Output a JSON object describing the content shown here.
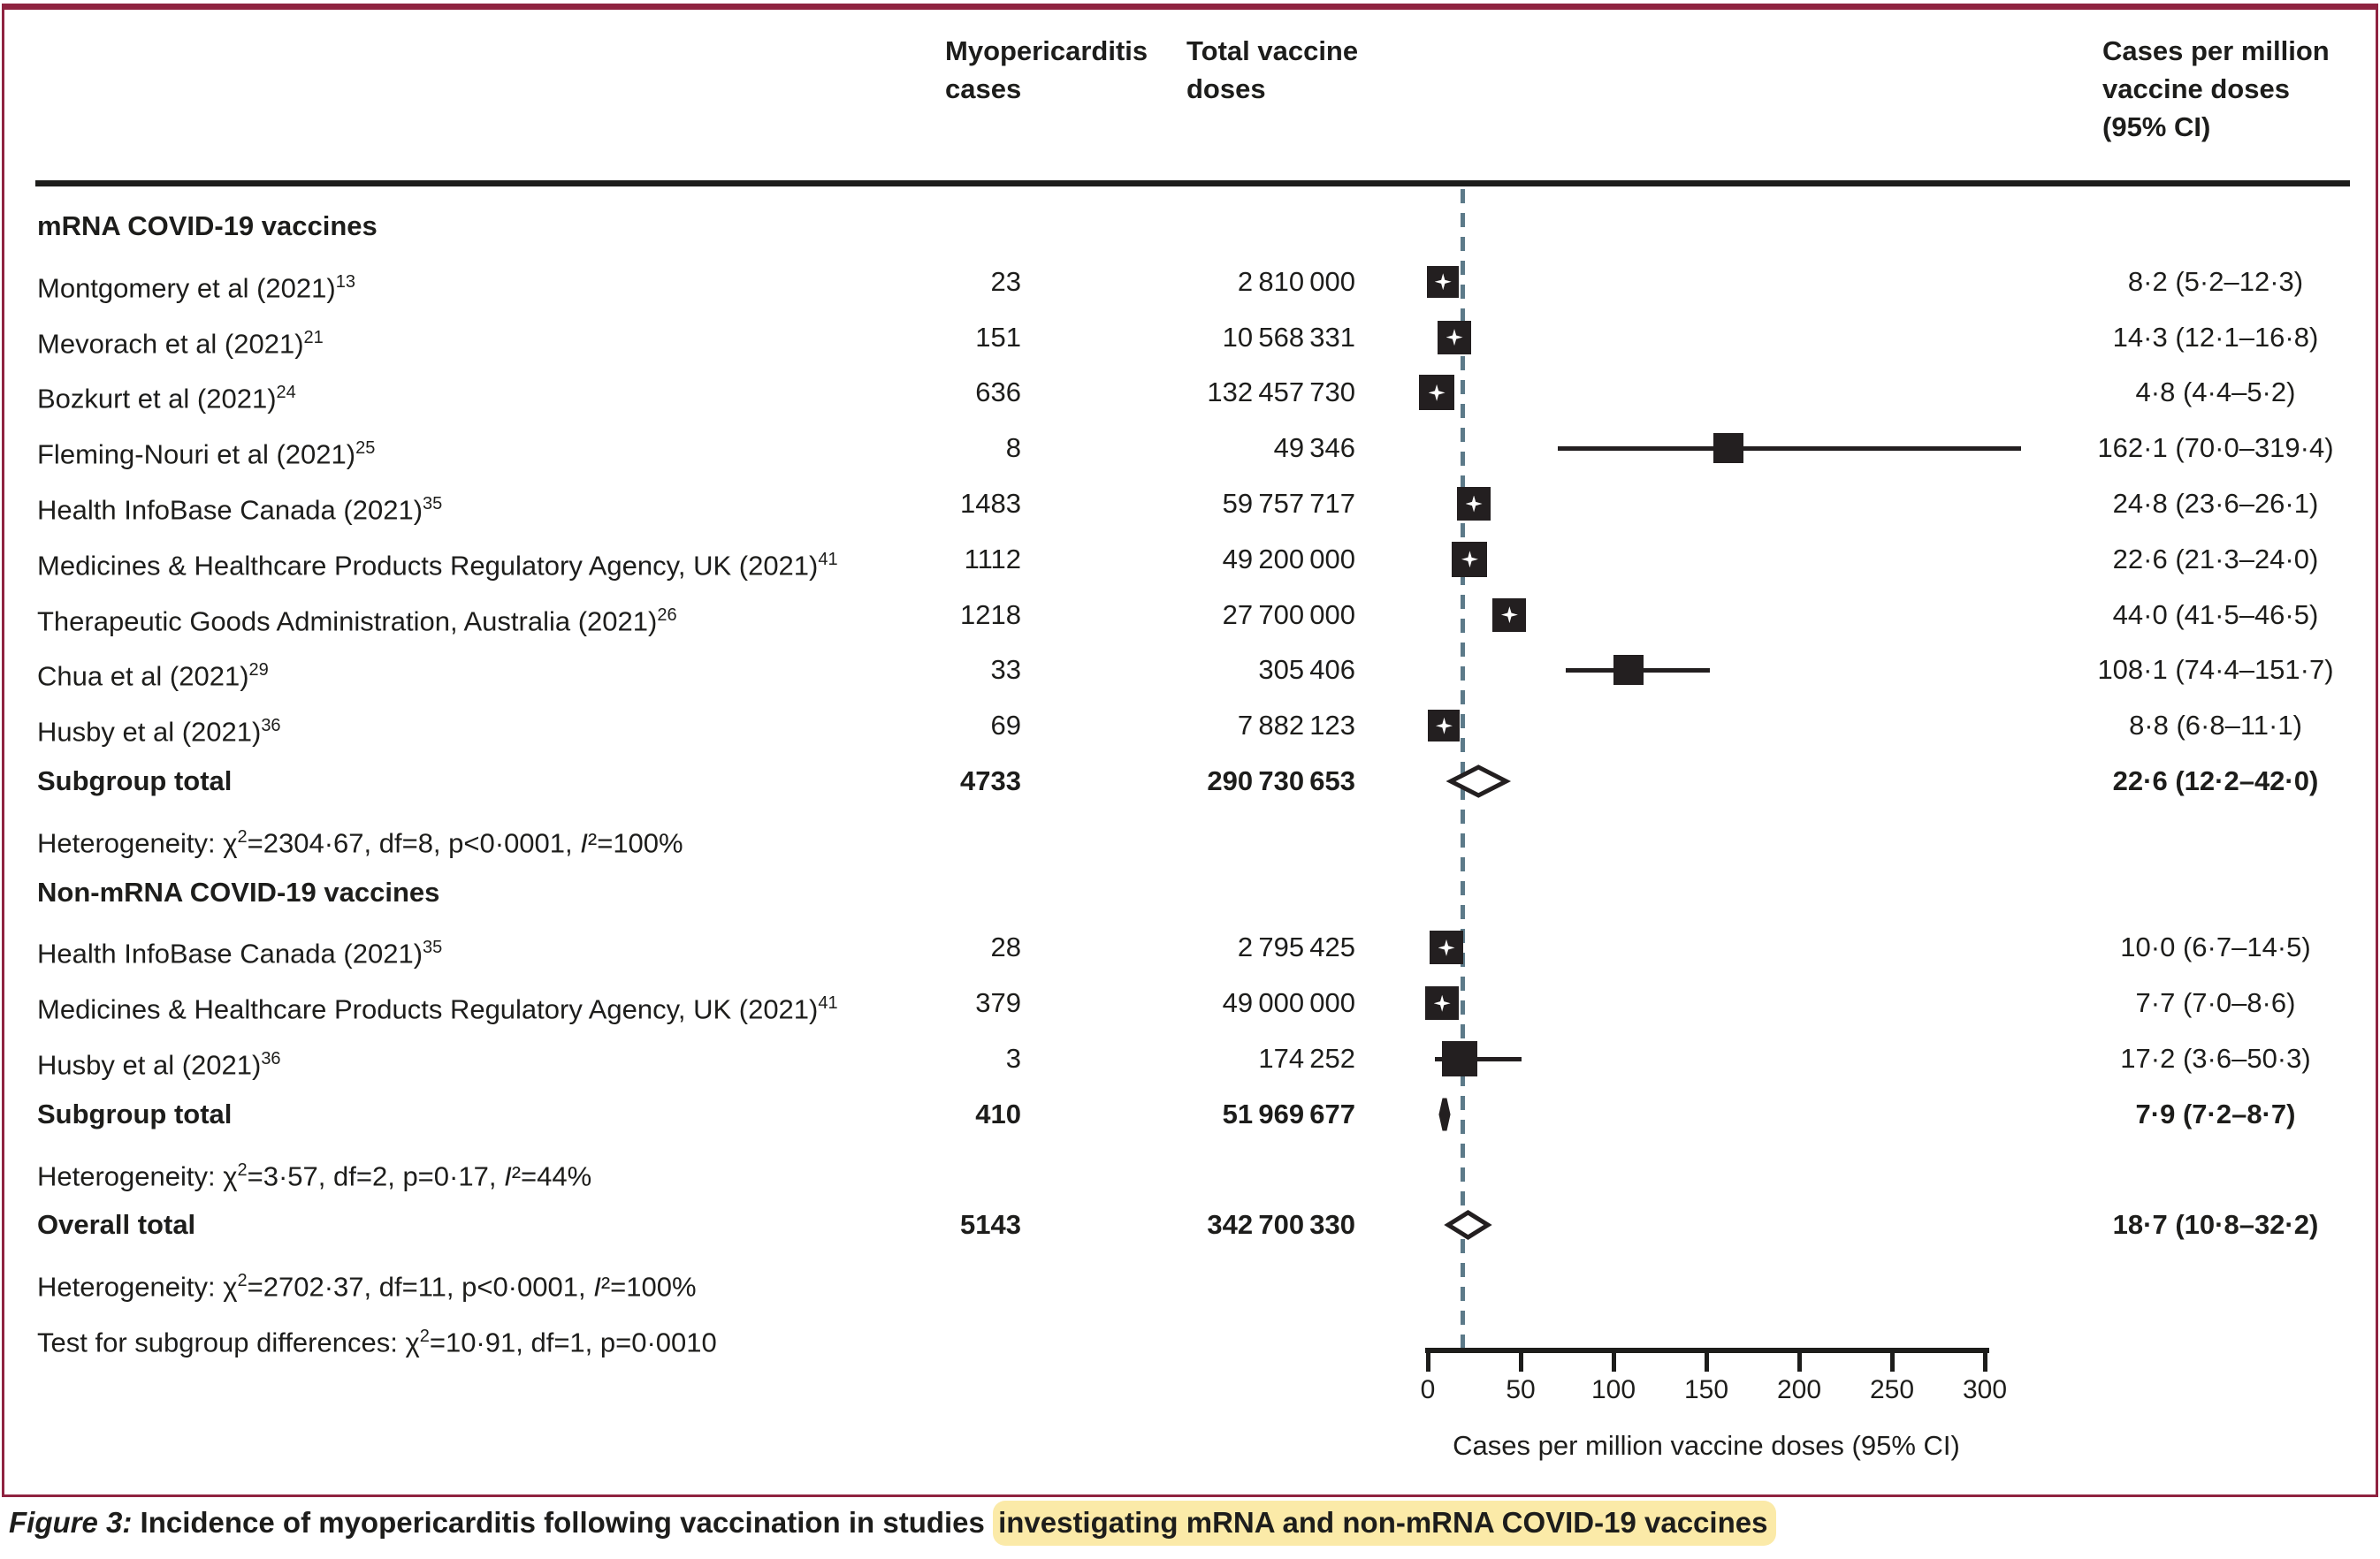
{
  "header": {
    "cases_col": "Myopericarditis\ncases",
    "doses_col": "Total vaccine\ndoses",
    "rate_col": "Cases per million\nvaccine doses\n(95% CI)"
  },
  "axis": {
    "min": 0,
    "max": 300,
    "ticks": [
      "0",
      "50",
      "100",
      "150",
      "200",
      "250",
      "300"
    ],
    "tick_values": [
      0,
      50,
      100,
      150,
      200,
      250,
      300
    ],
    "label": "Cases per million vaccine doses (95% CI)"
  },
  "rows": [
    {
      "type": "group",
      "label": "mRNA COVID-19 vaccines"
    },
    {
      "type": "study",
      "label": "Montgomery et al (2021)",
      "ref": "13",
      "cases": "23",
      "doses": "2 810 000",
      "ci_text": "8·2 (5·2–12·3)",
      "value": 8.2,
      "lo": 5.2,
      "hi": 12.3,
      "size": 36,
      "star": true
    },
    {
      "type": "study",
      "label": "Mevorach et al (2021)",
      "ref": "21",
      "cases": "151",
      "doses": "10 568 331",
      "ci_text": "14·3 (12·1–16·8)",
      "value": 14.3,
      "lo": 12.1,
      "hi": 16.8,
      "size": 38,
      "star": true
    },
    {
      "type": "study",
      "label": "Bozkurt et al (2021)",
      "ref": "24",
      "cases": "636",
      "doses": "132 457 730",
      "ci_text": "4·8 (4·4–5·2)",
      "value": 4.8,
      "lo": 4.4,
      "hi": 5.2,
      "size": 40,
      "star": true
    },
    {
      "type": "study",
      "label": "Fleming-Nouri et al (2021)",
      "ref": "25",
      "cases": "8",
      "doses": "49 346",
      "ci_text": "162·1 (70·0–319·4)",
      "value": 162.1,
      "lo": 70.0,
      "hi": 319.4,
      "size": 34,
      "star": false
    },
    {
      "type": "study",
      "label": "Health InfoBase Canada (2021)",
      "ref": "35",
      "cases": "1483",
      "doses": "59 757 717",
      "ci_text": "24·8 (23·6–26·1)",
      "value": 24.8,
      "lo": 23.6,
      "hi": 26.1,
      "size": 38,
      "star": true
    },
    {
      "type": "study",
      "label": "Medicines & Healthcare Products Regulatory Agency, UK (2021)",
      "ref": "41",
      "cases": "1112",
      "doses": "49 200 000",
      "ci_text": "22·6 (21·3–24·0)",
      "value": 22.6,
      "lo": 21.3,
      "hi": 24.0,
      "size": 40,
      "star": true
    },
    {
      "type": "study",
      "label": "Therapeutic Goods Administration, Australia (2021)",
      "ref": "26",
      "cases": "1218",
      "doses": "27 700 000",
      "ci_text": "44·0 (41·5–46·5)",
      "value": 44.0,
      "lo": 41.5,
      "hi": 46.5,
      "size": 38,
      "star": true
    },
    {
      "type": "study",
      "label": "Chua et al (2021)",
      "ref": "29",
      "cases": "33",
      "doses": "305 406",
      "ci_text": "108·1 (74·4–151·7)",
      "value": 108.1,
      "lo": 74.4,
      "hi": 151.7,
      "size": 34,
      "star": false
    },
    {
      "type": "study",
      "label": "Husby et al (2021)",
      "ref": "36",
      "cases": "69",
      "doses": "7 882 123",
      "ci_text": "8·8 (6·8–11·1)",
      "value": 8.8,
      "lo": 6.8,
      "hi": 11.1,
      "size": 36,
      "star": true
    },
    {
      "type": "subtotal",
      "label": "Subgroup total",
      "cases": "4733",
      "doses": "290 730 653",
      "ci_text": "22·6 (12·2–42·0)",
      "value": 22.6,
      "lo": 12.2,
      "hi": 42.0,
      "diamond": "open"
    },
    {
      "type": "het",
      "label": "Heterogeneity: χ²=2304·67, df=8, p<0·0001, I²=100%"
    },
    {
      "type": "group",
      "label": "Non-mRNA COVID-19 vaccines"
    },
    {
      "type": "study",
      "label": "Health InfoBase Canada (2021)",
      "ref": "35",
      "cases": "28",
      "doses": "2 795 425",
      "ci_text": "10·0 (6·7–14·5)",
      "value": 10.0,
      "lo": 6.7,
      "hi": 14.5,
      "size": 38,
      "star": true
    },
    {
      "type": "study",
      "label": "Medicines & Healthcare Products Regulatory Agency, UK (2021)",
      "ref": "41",
      "cases": "379",
      "doses": "49 000 000",
      "ci_text": "7·7 (7·0–8·6)",
      "value": 7.7,
      "lo": 7.0,
      "hi": 8.6,
      "size": 38,
      "star": true
    },
    {
      "type": "study",
      "label": "Husby et al (2021)",
      "ref": "36",
      "cases": "3",
      "doses": "174 252",
      "ci_text": "17·2 (3·6–50·3)",
      "value": 17.2,
      "lo": 3.6,
      "hi": 50.3,
      "size": 40,
      "star": false
    },
    {
      "type": "subtotal",
      "label": "Subgroup total",
      "cases": "410",
      "doses": "51 969 677",
      "ci_text": "7·9 (7·2–8·7)",
      "value": 7.9,
      "lo": 7.2,
      "hi": 8.7,
      "diamond": "filled"
    },
    {
      "type": "het",
      "label": "Heterogeneity: χ²=3·57, df=2, p=0·17, I²=44%"
    },
    {
      "type": "overall",
      "label": "Overall total",
      "cases": "5143",
      "doses": "342 700 330",
      "ci_text": "18·7 (10·8–32·2)",
      "value": 18.7,
      "lo": 10.8,
      "hi": 32.2,
      "diamond": "open"
    },
    {
      "type": "het",
      "label": "Heterogeneity: χ²=2702·37, df=11, p<0·0001, I²=100%"
    },
    {
      "type": "het",
      "label": "Test for subgroup differences: χ²=10·91, df=1, p=0·0010"
    }
  ],
  "caption": {
    "fig_label": "Figure 3:",
    "text": " Incidence of myopericarditis following vaccination in studies ",
    "highlight": "investigating mRNA and non-mRNA COVID-19 vaccines"
  },
  "colors": {
    "frame": "#8f2340",
    "marker": "#231f20",
    "dashed_line": "#5c7a89",
    "highlight": "#fbeaa8"
  },
  "chart_data": {
    "type": "forest",
    "title": "Incidence of myopericarditis following vaccination",
    "xlabel": "Cases per million vaccine doses (95% CI)",
    "xlim": [
      0,
      300
    ],
    "x_ticks": [
      0,
      50,
      100,
      150,
      200,
      250,
      300
    ],
    "reference_line": 18.7,
    "groups": [
      {
        "name": "mRNA COVID-19 vaccines",
        "studies": [
          {
            "study": "Montgomery et al (2021)",
            "cases": 23,
            "doses": 2810000,
            "rate": 8.2,
            "ci": [
              5.2,
              12.3
            ]
          },
          {
            "study": "Mevorach et al (2021)",
            "cases": 151,
            "doses": 10568331,
            "rate": 14.3,
            "ci": [
              12.1,
              16.8
            ]
          },
          {
            "study": "Bozkurt et al (2021)",
            "cases": 636,
            "doses": 132457730,
            "rate": 4.8,
            "ci": [
              4.4,
              5.2
            ]
          },
          {
            "study": "Fleming-Nouri et al (2021)",
            "cases": 8,
            "doses": 49346,
            "rate": 162.1,
            "ci": [
              70.0,
              319.4
            ]
          },
          {
            "study": "Health InfoBase Canada (2021)",
            "cases": 1483,
            "doses": 59757717,
            "rate": 24.8,
            "ci": [
              23.6,
              26.1
            ]
          },
          {
            "study": "Medicines & Healthcare Products Regulatory Agency, UK (2021)",
            "cases": 1112,
            "doses": 49200000,
            "rate": 22.6,
            "ci": [
              21.3,
              24.0
            ]
          },
          {
            "study": "Therapeutic Goods Administration, Australia (2021)",
            "cases": 1218,
            "doses": 27700000,
            "rate": 44.0,
            "ci": [
              41.5,
              46.5
            ]
          },
          {
            "study": "Chua et al (2021)",
            "cases": 33,
            "doses": 305406,
            "rate": 108.1,
            "ci": [
              74.4,
              151.7
            ]
          },
          {
            "study": "Husby et al (2021)",
            "cases": 69,
            "doses": 7882123,
            "rate": 8.8,
            "ci": [
              6.8,
              11.1
            ]
          }
        ],
        "subtotal": {
          "cases": 4733,
          "doses": 290730653,
          "rate": 22.6,
          "ci": [
            12.2,
            42.0
          ]
        },
        "heterogeneity": "chi2=2304.67, df=8, p<0.0001, I2=100%"
      },
      {
        "name": "Non-mRNA COVID-19 vaccines",
        "studies": [
          {
            "study": "Health InfoBase Canada (2021)",
            "cases": 28,
            "doses": 2795425,
            "rate": 10.0,
            "ci": [
              6.7,
              14.5
            ]
          },
          {
            "study": "Medicines & Healthcare Products Regulatory Agency, UK (2021)",
            "cases": 379,
            "doses": 49000000,
            "rate": 7.7,
            "ci": [
              7.0,
              8.6
            ]
          },
          {
            "study": "Husby et al (2021)",
            "cases": 3,
            "doses": 174252,
            "rate": 17.2,
            "ci": [
              3.6,
              50.3
            ]
          }
        ],
        "subtotal": {
          "cases": 410,
          "doses": 51969677,
          "rate": 7.9,
          "ci": [
            7.2,
            8.7
          ]
        },
        "heterogeneity": "chi2=3.57, df=2, p=0.17, I2=44%"
      }
    ],
    "overall": {
      "cases": 5143,
      "doses": 342700330,
      "rate": 18.7,
      "ci": [
        10.8,
        32.2
      ]
    },
    "overall_heterogeneity": "chi2=2702.37, df=11, p<0.0001, I2=100%",
    "subgroup_difference_test": "chi2=10.91, df=1, p=0.0010"
  }
}
